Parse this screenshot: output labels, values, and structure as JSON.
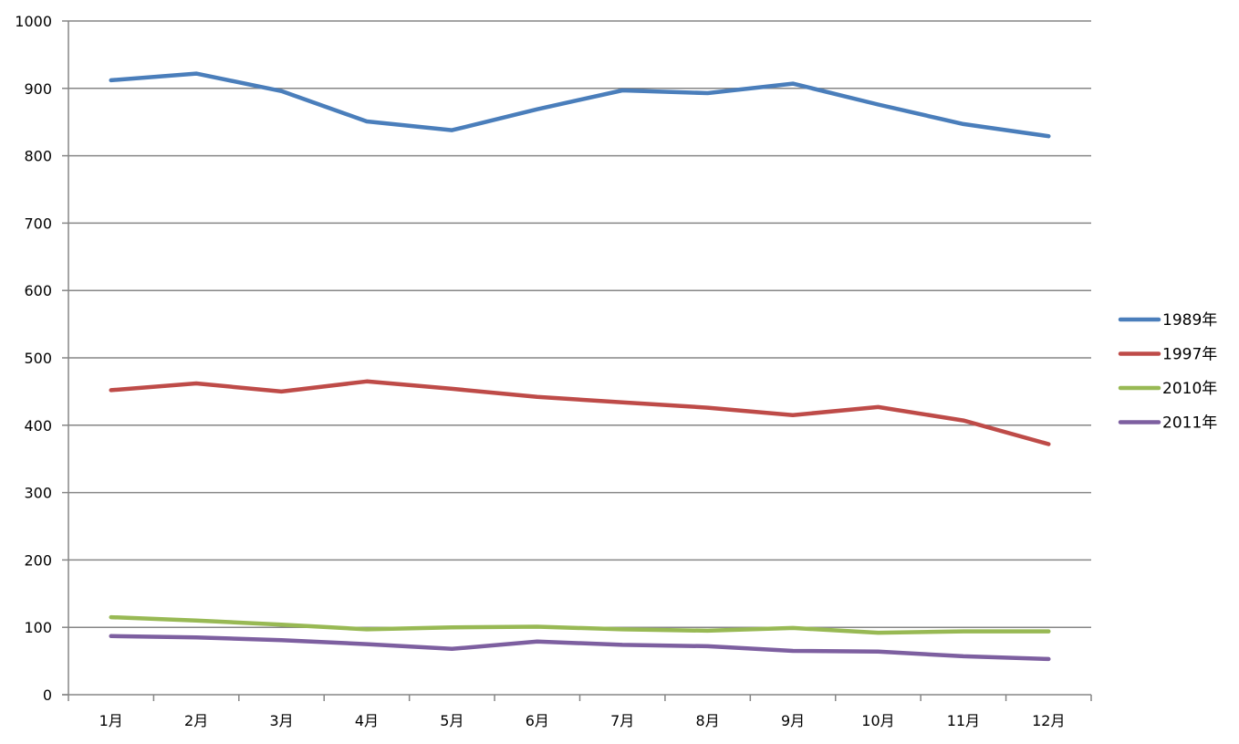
{
  "chart_data": {
    "type": "line",
    "title": "",
    "xlabel": "",
    "ylabel": "",
    "ylim": [
      0,
      1000
    ],
    "yticks": [
      0,
      100,
      200,
      300,
      400,
      500,
      600,
      700,
      800,
      900,
      1000
    ],
    "grid": "horizontal",
    "legend": "right",
    "categories": [
      "1月",
      "2月",
      "3月",
      "4月",
      "5月",
      "6月",
      "7月",
      "8月",
      "9月",
      "10月",
      "11月",
      "12月"
    ],
    "series": [
      {
        "name": "1989年",
        "color": "#4a7ebb",
        "values": [
          912,
          922,
          896,
          851,
          838,
          869,
          897,
          893,
          907,
          876,
          847,
          829
        ]
      },
      {
        "name": "1997年",
        "color": "#be4b48",
        "values": [
          452,
          462,
          450,
          465,
          454,
          442,
          434,
          426,
          415,
          427,
          407,
          372
        ]
      },
      {
        "name": "2010年",
        "color": "#98b954",
        "values": [
          115,
          110,
          104,
          97,
          100,
          101,
          97,
          95,
          99,
          92,
          94,
          94
        ]
      },
      {
        "name": "2011年",
        "color": "#7d5fa0",
        "values": [
          87,
          85,
          81,
          75,
          68,
          79,
          74,
          72,
          65,
          64,
          57,
          53
        ]
      }
    ]
  }
}
